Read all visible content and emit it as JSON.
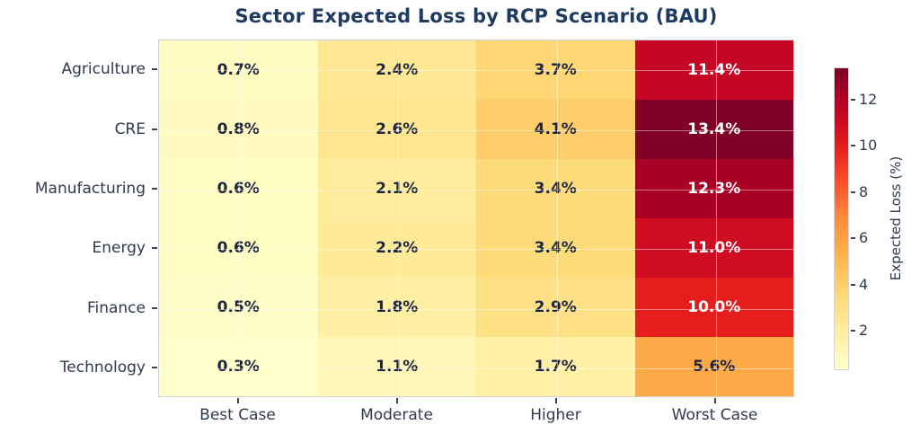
{
  "chart_data": {
    "type": "heatmap",
    "title": "Sector Expected Loss by RCP Scenario (BAU)",
    "rows": [
      "Agriculture",
      "CRE",
      "Manufacturing",
      "Energy",
      "Finance",
      "Technology"
    ],
    "columns": [
      "Best Case",
      "Moderate",
      "Higher",
      "Worst Case"
    ],
    "values": [
      [
        0.7,
        2.4,
        3.7,
        11.4
      ],
      [
        0.8,
        2.6,
        4.1,
        13.4
      ],
      [
        0.6,
        2.1,
        3.4,
        12.3
      ],
      [
        0.6,
        2.2,
        3.4,
        11.0
      ],
      [
        0.5,
        1.8,
        2.9,
        10.0
      ],
      [
        0.3,
        1.1,
        1.7,
        5.6
      ]
    ],
    "value_suffix": "%",
    "colormap": "YlOrRd",
    "vmin": 0.3,
    "vmax": 13.4,
    "colorbar": {
      "label": "Expected Loss (%)",
      "ticks": [
        2,
        4,
        6,
        8,
        10,
        12
      ]
    },
    "colors": {
      "title": "#1e3a5f",
      "tick_label": "#2f3a4d",
      "cell_text_dark": "#1c2540",
      "cell_text_light": "#ffffff"
    },
    "layout_hints": {
      "grid": "faint white lines at cell centers",
      "legend_position": "right colorbar",
      "annotations": "bold percentage in every cell"
    }
  }
}
